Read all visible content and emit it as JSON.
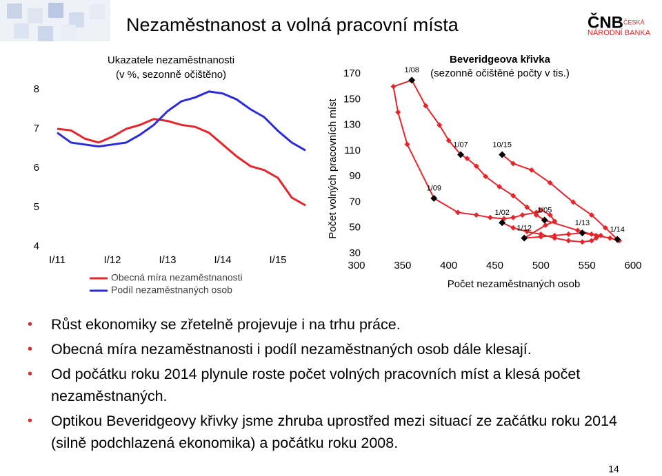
{
  "header": {
    "title": "Nezaměstnanost a volná pracovní místa"
  },
  "logo": {
    "mark": "ČNB",
    "line1": "ČESKÁ",
    "line2": "NÁRODNÍ BANKA"
  },
  "chart_data": [
    {
      "type": "line",
      "title": "Ukazatele nezaměstnanosti",
      "subtitle": "(v %, sezonně očištěno)",
      "categories": [
        "I/11",
        null,
        null,
        null,
        "I/12",
        null,
        null,
        null,
        "I/13",
        null,
        null,
        null,
        "I/14",
        null,
        null,
        null,
        "I/15",
        null,
        null
      ],
      "series": [
        {
          "name": "Obecná míra nezaměstnanosti",
          "color": "#e3262b",
          "values": [
            7.0,
            6.96,
            6.75,
            6.65,
            6.8,
            7.0,
            7.1,
            7.25,
            7.2,
            7.1,
            7.05,
            6.9,
            6.6,
            6.3,
            6.05,
            5.95,
            5.75,
            5.25,
            5.05
          ]
        },
        {
          "name": "Podíl nezaměstnaných osob",
          "color": "#2b2bd9",
          "values": [
            6.9,
            6.65,
            6.6,
            6.55,
            6.6,
            6.65,
            6.85,
            7.1,
            7.45,
            7.7,
            7.8,
            7.95,
            7.9,
            7.75,
            7.5,
            7.3,
            6.95,
            6.65,
            6.45
          ]
        }
      ],
      "ylim": [
        4,
        8
      ],
      "yticks": [
        4,
        5,
        6,
        7,
        8
      ]
    },
    {
      "type": "scatter",
      "connected": true,
      "title": "Beveridgeova křivka",
      "subtitle": "(sezonně očištěné počty v tis.)",
      "x_label": "Počet nezaměstnaných osob",
      "y_label": "Počet volných pracovních míst",
      "x": [
        458,
        470,
        485,
        500,
        515,
        530,
        545,
        555,
        560,
        565,
        555,
        540,
        504,
        495,
        485,
        470,
        455,
        440,
        430,
        420,
        413,
        400,
        390,
        375,
        360,
        340,
        345,
        355,
        384,
        410,
        430,
        445,
        460,
        470,
        480,
        495,
        500,
        510,
        515,
        505,
        482,
        500,
        515,
        530,
        545,
        560,
        575,
        585,
        583,
        570,
        555,
        535,
        510,
        490,
        470,
        458
      ],
      "series": [
        {
          "name": "Beveridgeova křivka",
          "color": "#e3262b",
          "values": [
            54,
            50,
            47,
            45,
            42,
            40,
            39,
            40,
            42,
            44,
            45,
            48,
            56,
            60,
            66,
            75,
            82,
            90,
            98,
            104,
            107,
            118,
            130,
            145,
            165,
            160,
            140,
            115,
            73,
            62,
            60,
            58,
            57,
            58,
            60,
            62,
            64,
            60,
            55,
            52,
            42,
            43,
            44,
            45,
            46,
            44,
            42,
            40,
            41,
            50,
            60,
            70,
            85,
            95,
            100,
            107
          ]
        }
      ],
      "annotations": [
        {
          "text": "1/02",
          "x": 458,
          "y": 54
        },
        {
          "text": "1/05",
          "x": 504,
          "y": 56
        },
        {
          "text": "1/07",
          "x": 413,
          "y": 107
        },
        {
          "text": "1/08",
          "x": 360,
          "y": 165
        },
        {
          "text": "1/09",
          "x": 384,
          "y": 73
        },
        {
          "text": "1/12",
          "x": 482,
          "y": 42
        },
        {
          "text": "1/13",
          "x": 545,
          "y": 46
        },
        {
          "text": "1/14",
          "x": 583,
          "y": 41
        },
        {
          "text": "10/15",
          "x": 458,
          "y": 107
        }
      ],
      "xlim": [
        300,
        600
      ],
      "xticks": [
        300,
        350,
        400,
        450,
        500,
        550,
        600
      ],
      "ylim": [
        30,
        170
      ],
      "yticks": [
        30,
        50,
        70,
        90,
        110,
        130,
        150,
        170
      ]
    }
  ],
  "bullets": [
    "Růst ekonomiky se zřetelně projevuje i na trhu práce.",
    "Obecná míra nezaměstnanosti i podíl nezaměstnaných osob dále klesají.",
    "Od počátku roku 2014 plynule roste počet volných pracovních míst a klesá počet nezaměstnaných.",
    "Optikou Beveridgeovy křivky jsme zhruba uprostřed mezi situací ze začátku roku 2014 (silně podchlazená ekonomika) a počátku roku 2008."
  ],
  "page_number": "14"
}
